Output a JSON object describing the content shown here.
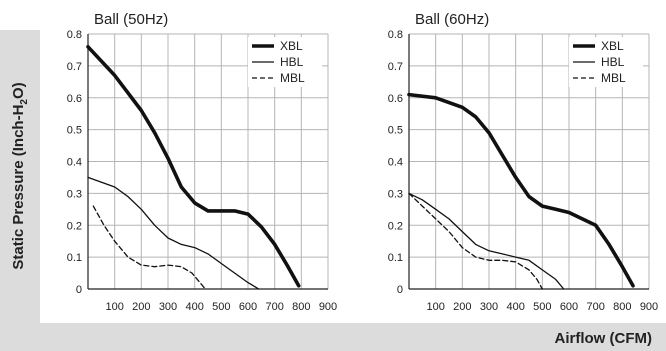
{
  "figure": {
    "y_axis_title": "Static Pressure (Inch-H2O)",
    "x_axis_title": "Airflow (CFM)"
  },
  "chart_data": [
    {
      "type": "line",
      "title": "Ball (50Hz)",
      "xlabel": "Airflow (CFM)",
      "ylabel": "Static Pressure (Inch-H2O)",
      "xlim": [
        0,
        900
      ],
      "ylim": [
        0,
        0.8
      ],
      "x_ticks": [
        "100",
        "200",
        "300",
        "400",
        "500",
        "600",
        "700",
        "800",
        "900"
      ],
      "y_ticks": [
        "0",
        "0.1",
        "0.2",
        "0.3",
        "0.4",
        "0.5",
        "0.6",
        "0.7",
        "0.8"
      ],
      "grid": true,
      "legend_position": "top-right",
      "series": [
        {
          "name": "XBL",
          "style": "thick",
          "points": [
            [
              0,
              0.76
            ],
            [
              100,
              0.67
            ],
            [
              200,
              0.56
            ],
            [
              250,
              0.49
            ],
            [
              300,
              0.41
            ],
            [
              350,
              0.32
            ],
            [
              400,
              0.27
            ],
            [
              450,
              0.245
            ],
            [
              500,
              0.245
            ],
            [
              550,
              0.245
            ],
            [
              600,
              0.235
            ],
            [
              650,
              0.195
            ],
            [
              700,
              0.14
            ],
            [
              750,
              0.07
            ],
            [
              790,
              0.01
            ]
          ]
        },
        {
          "name": "HBL",
          "style": "thin",
          "points": [
            [
              0,
              0.35
            ],
            [
              100,
              0.32
            ],
            [
              150,
              0.29
            ],
            [
              200,
              0.25
            ],
            [
              250,
              0.2
            ],
            [
              300,
              0.16
            ],
            [
              350,
              0.14
            ],
            [
              400,
              0.13
            ],
            [
              450,
              0.11
            ],
            [
              500,
              0.08
            ],
            [
              550,
              0.05
            ],
            [
              600,
              0.02
            ],
            [
              640,
              0
            ]
          ]
        },
        {
          "name": "MBL",
          "style": "dashed",
          "points": [
            [
              20,
              0.26
            ],
            [
              60,
              0.2
            ],
            [
              100,
              0.15
            ],
            [
              150,
              0.1
            ],
            [
              200,
              0.075
            ],
            [
              250,
              0.07
            ],
            [
              300,
              0.075
            ],
            [
              350,
              0.07
            ],
            [
              390,
              0.05
            ],
            [
              420,
              0.02
            ],
            [
              440,
              0
            ]
          ]
        }
      ]
    },
    {
      "type": "line",
      "title": "Ball (60Hz)",
      "xlabel": "Airflow (CFM)",
      "ylabel": "Static Pressure (Inch-H2O)",
      "xlim": [
        0,
        900
      ],
      "ylim": [
        0,
        0.8
      ],
      "x_ticks": [
        "100",
        "200",
        "300",
        "400",
        "500",
        "600",
        "700",
        "800",
        "900"
      ],
      "y_ticks": [
        "0",
        "0.1",
        "0.2",
        "0.3",
        "0.4",
        "0.5",
        "0.6",
        "0.7",
        "0.8"
      ],
      "grid": true,
      "legend_position": "top-right",
      "series": [
        {
          "name": "XBL",
          "style": "thick",
          "points": [
            [
              0,
              0.61
            ],
            [
              100,
              0.6
            ],
            [
              200,
              0.57
            ],
            [
              250,
              0.54
            ],
            [
              300,
              0.49
            ],
            [
              350,
              0.42
            ],
            [
              400,
              0.35
            ],
            [
              450,
              0.29
            ],
            [
              500,
              0.26
            ],
            [
              550,
              0.25
            ],
            [
              600,
              0.24
            ],
            [
              650,
              0.22
            ],
            [
              700,
              0.2
            ],
            [
              750,
              0.14
            ],
            [
              800,
              0.07
            ],
            [
              840,
              0.01
            ]
          ]
        },
        {
          "name": "HBL",
          "style": "thin",
          "points": [
            [
              0,
              0.3
            ],
            [
              50,
              0.28
            ],
            [
              100,
              0.25
            ],
            [
              150,
              0.22
            ],
            [
              200,
              0.18
            ],
            [
              250,
              0.14
            ],
            [
              300,
              0.12
            ],
            [
              350,
              0.11
            ],
            [
              400,
              0.1
            ],
            [
              450,
              0.09
            ],
            [
              500,
              0.06
            ],
            [
              550,
              0.03
            ],
            [
              580,
              0
            ]
          ]
        },
        {
          "name": "MBL",
          "style": "dashed",
          "points": [
            [
              0,
              0.3
            ],
            [
              50,
              0.26
            ],
            [
              100,
              0.22
            ],
            [
              150,
              0.18
            ],
            [
              200,
              0.13
            ],
            [
              250,
              0.1
            ],
            [
              300,
              0.09
            ],
            [
              350,
              0.09
            ],
            [
              400,
              0.085
            ],
            [
              450,
              0.06
            ],
            [
              480,
              0.03
            ],
            [
              500,
              0
            ]
          ]
        }
      ]
    }
  ]
}
